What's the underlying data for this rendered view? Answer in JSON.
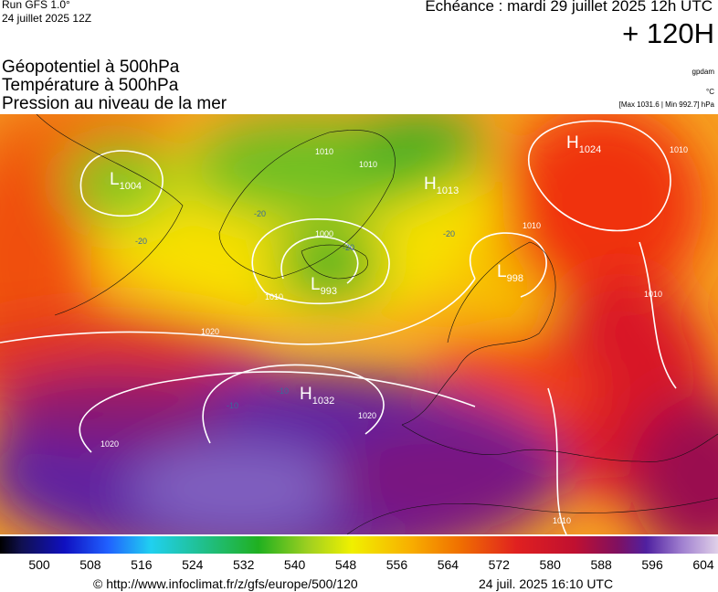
{
  "header": {
    "run": "Run GFS 1.0°",
    "date": "24 juillet 2025 12Z",
    "valid": "Echéance : mardi 29 juillet 2025 12h UTC",
    "lead": "+ 120H"
  },
  "fields": [
    "Géopotentiel à 500hPa",
    "Température à 500hPa",
    "Pression au niveau de la mer"
  ],
  "units": [
    "gpdam",
    "°C",
    "[Max 1031.6 | Min 992.7] hPa"
  ],
  "centers": [
    {
      "letter": "H",
      "value": "1024"
    },
    {
      "letter": "L",
      "value": "1004"
    },
    {
      "letter": "H",
      "value": "1013"
    },
    {
      "letter": "L",
      "value": "993"
    },
    {
      "letter": "L",
      "value": "998"
    },
    {
      "letter": "H",
      "value": "1032"
    }
  ],
  "isobar_labels": [
    "1010",
    "1010",
    "1010",
    "1010",
    "1010",
    "1010",
    "1000",
    "1020",
    "1020",
    "1020",
    "1010"
  ],
  "temp_labels": [
    "-20",
    "-20",
    "-20",
    "-20",
    "-10",
    "-10"
  ],
  "colorbar": {
    "ticks": [
      500,
      508,
      516,
      524,
      532,
      540,
      548,
      556,
      564,
      572,
      580,
      588,
      596,
      604
    ]
  },
  "footer": {
    "url": "© http://www.infoclimat.fr/z/gfs/europe/500/120",
    "timestamp": "24 juil. 2025 16:10 UTC"
  }
}
